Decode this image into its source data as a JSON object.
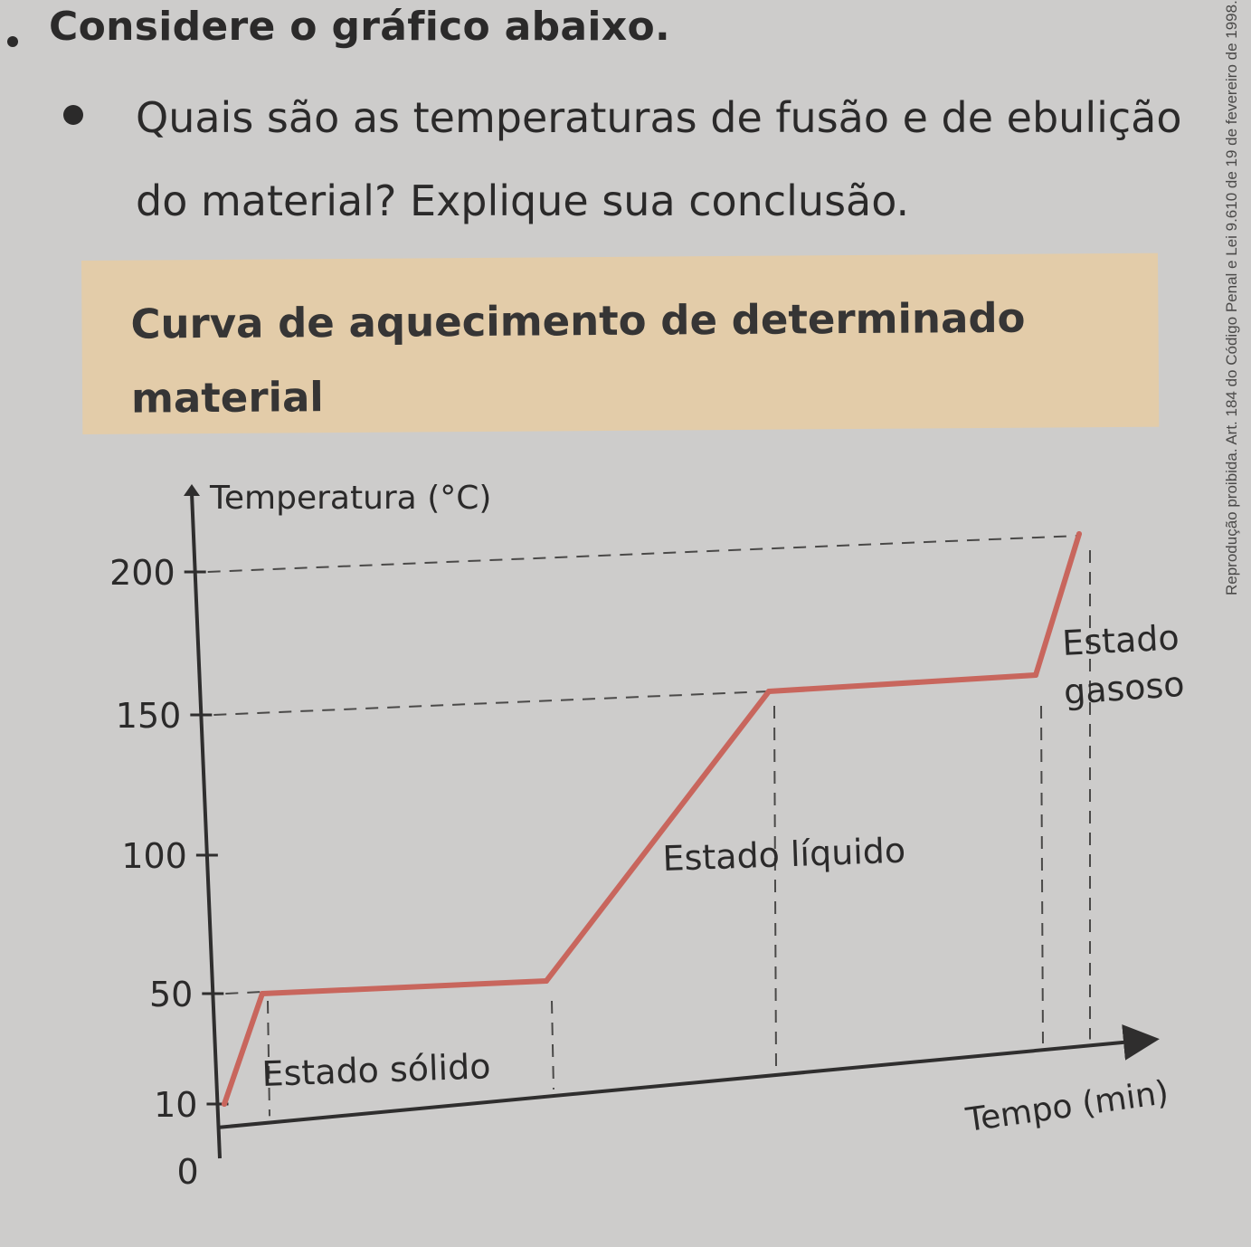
{
  "question": {
    "title": "Considere o gráfico abaixo.",
    "text": "Quais são as temperaturas de fusão e de ebulição do material? Explique sua conclusão."
  },
  "side_note": "Reprodução proibida. Art. 184 do Código Penal e Lei 9.610 de 19 de fevereiro de 1998.",
  "colors": {
    "curve": "#c8665d",
    "axis": "#2f2e2e",
    "dashes": "#4a4948",
    "title_box": "#e3cca9"
  },
  "chart_data": {
    "type": "line",
    "title": "Curva de aquecimento de determinado material",
    "ylabel": "Temperatura (°C)",
    "xlabel": "Tempo (min)",
    "yticks": [
      {
        "value": 0,
        "label": "0"
      },
      {
        "value": 10,
        "label": "10"
      },
      {
        "value": 50,
        "label": "50"
      },
      {
        "value": 100,
        "label": "100"
      },
      {
        "value": 150,
        "label": "150"
      },
      {
        "value": 200,
        "label": "200"
      }
    ],
    "ylim": [
      0,
      200
    ],
    "grid": false,
    "series": [
      {
        "x": [
          0,
          1,
          8,
          13,
          22,
          25
        ],
        "y": [
          10,
          50,
          50,
          150,
          150,
          200
        ]
      }
    ],
    "annotations": [
      {
        "text": "Estado sólido",
        "x": 4.5,
        "y": 27
      },
      {
        "text": "Estado líquido",
        "x": 17,
        "y": 102
      },
      {
        "text": "Estado",
        "x": 23.5,
        "y": 172
      },
      {
        "text": "gasoso",
        "x": 23.5,
        "y": 158
      }
    ]
  }
}
